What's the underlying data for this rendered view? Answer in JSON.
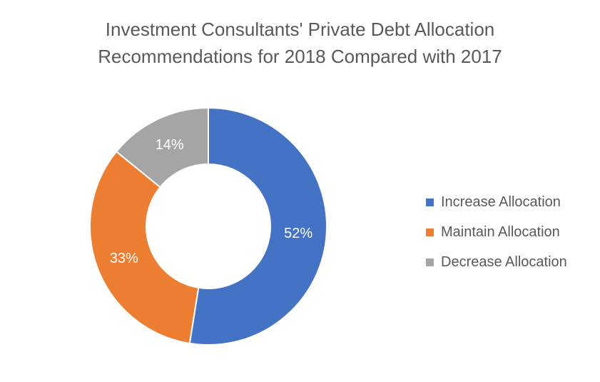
{
  "chart_data": {
    "type": "pie",
    "variant": "donut",
    "title_lines": [
      "Investment Consultants' Private Debt Allocation",
      "Recommendations for 2018 Compared with 2017"
    ],
    "categories": [
      "Increase Allocation",
      "Maintain Allocation",
      "Decrease Allocation"
    ],
    "values": [
      52,
      33,
      14
    ],
    "data_labels": [
      "52%",
      "33%",
      "14%"
    ],
    "colors": [
      "#4472C4",
      "#ED7D31",
      "#A5A5A5"
    ],
    "legend_position": "right"
  }
}
